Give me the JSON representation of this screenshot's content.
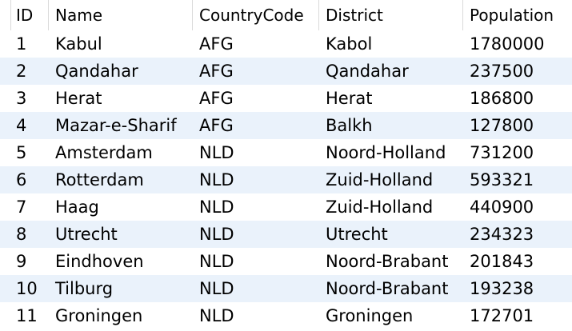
{
  "columns": [
    {
      "key": "id",
      "label": "ID"
    },
    {
      "key": "name",
      "label": "Name"
    },
    {
      "key": "code",
      "label": "CountryCode"
    },
    {
      "key": "district",
      "label": "District"
    },
    {
      "key": "population",
      "label": "Population"
    }
  ],
  "rows": [
    {
      "id": "1",
      "name": "Kabul",
      "code": "AFG",
      "district": "Kabol",
      "population": "1780000"
    },
    {
      "id": "2",
      "name": "Qandahar",
      "code": "AFG",
      "district": "Qandahar",
      "population": "237500"
    },
    {
      "id": "3",
      "name": "Herat",
      "code": "AFG",
      "district": "Herat",
      "population": "186800"
    },
    {
      "id": "4",
      "name": "Mazar-e-Sharif",
      "code": "AFG",
      "district": "Balkh",
      "population": "127800"
    },
    {
      "id": "5",
      "name": "Amsterdam",
      "code": "NLD",
      "district": "Noord-Holland",
      "population": "731200"
    },
    {
      "id": "6",
      "name": "Rotterdam",
      "code": "NLD",
      "district": "Zuid-Holland",
      "population": "593321"
    },
    {
      "id": "7",
      "name": "Haag",
      "code": "NLD",
      "district": "Zuid-Holland",
      "population": "440900"
    },
    {
      "id": "8",
      "name": "Utrecht",
      "code": "NLD",
      "district": "Utrecht",
      "population": "234323"
    },
    {
      "id": "9",
      "name": "Eindhoven",
      "code": "NLD",
      "district": "Noord-Brabant",
      "population": "201843"
    },
    {
      "id": "10",
      "name": "Tilburg",
      "code": "NLD",
      "district": "Noord-Brabant",
      "population": "193238"
    },
    {
      "id": "11",
      "name": "Groningen",
      "code": "NLD",
      "district": "Groningen",
      "population": "172701"
    }
  ],
  "colors": {
    "alt_row": "#eaf2fb",
    "row": "#ffffff",
    "grid_line": "#dadada"
  }
}
